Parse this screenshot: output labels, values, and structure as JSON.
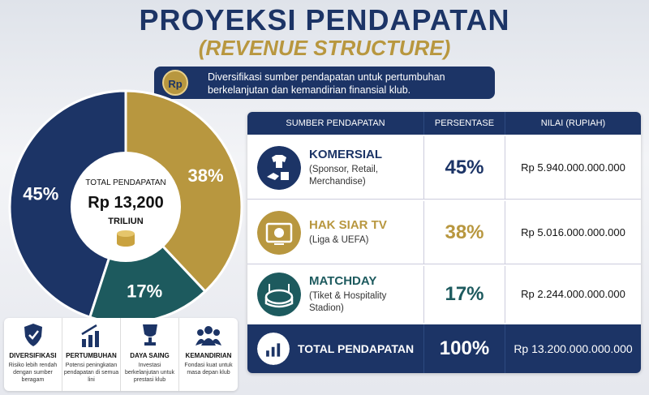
{
  "title": "PROYEKSI PENDAPATAN",
  "subtitle": "(REVENUE STRUCTURE)",
  "badge": "Rp",
  "intro": "Diversifikasi sumber pendapatan untuk pertumbuhan berkelanjutan dan kemandirian finansial klub.",
  "chart_data": {
    "type": "pie",
    "values": [
      45,
      38,
      17
    ],
    "value_labels": [
      "45%",
      "38%",
      "17%"
    ],
    "colors": [
      "#1c3466",
      "#b8973f",
      "#1d5a5e"
    ],
    "center": {
      "label": "TOTAL PENDAPATAN",
      "value": "Rp 13,200",
      "unit": "TRILIUN"
    }
  },
  "table": {
    "headers": [
      "SUMBER PENDAPATAN",
      "PERSENTASE",
      "NILAI (RUPIAH)"
    ],
    "rows": [
      {
        "name": "KOMERSIAL",
        "desc": "(Sponsor, Retail, Merchandise)",
        "pct": "45%",
        "value": "Rp 5.940.000.000.000"
      },
      {
        "name": "HAK SIAR TV",
        "desc": "(Liga & UEFA)",
        "pct": "38%",
        "value": "Rp 5.016.000.000.000"
      },
      {
        "name": "MATCHDAY",
        "desc": "(Tiket & Hospitality Stadion)",
        "pct": "17%",
        "value": "Rp 2.244.000.000.000"
      }
    ],
    "total": {
      "name": "TOTAL PENDAPATAN",
      "pct": "100%",
      "value": "Rp 13.200.000.000.000"
    }
  },
  "features": [
    {
      "title": "DIVERSIFIKASI",
      "desc": "Risiko lebih rendah dengan sumber beragam"
    },
    {
      "title": "PERTUMBUHAN",
      "desc": "Potensi peningkatan pendapatan di semua lini"
    },
    {
      "title": "DAYA SAING",
      "desc": "Investasi berkelanjutan untuk prestasi klub"
    },
    {
      "title": "KEMANDIRIAN",
      "desc": "Fondasi kuat untuk masa depan klub"
    }
  ]
}
